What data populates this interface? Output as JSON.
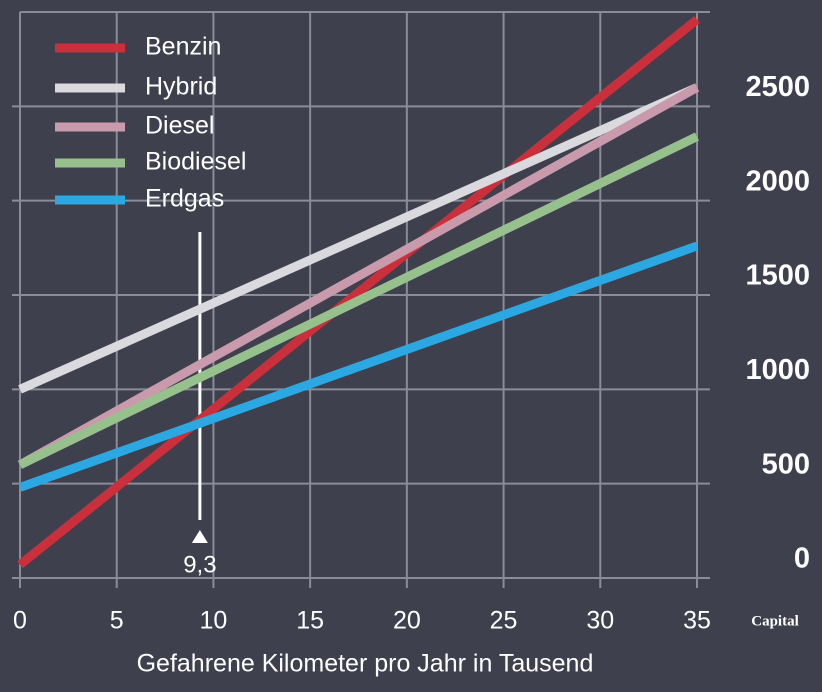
{
  "chart_data": {
    "type": "line",
    "x": [
      0,
      35
    ],
    "series": [
      {
        "name": "Benzin",
        "color": "#c9303b",
        "values": [
          70,
          2960
        ]
      },
      {
        "name": "Hybrid",
        "color": "#d9d9de",
        "values": [
          1000,
          2600
        ]
      },
      {
        "name": "Diesel",
        "color": "#c99aab",
        "values": [
          600,
          2600
        ]
      },
      {
        "name": "Biodiesel",
        "color": "#97c18c",
        "values": [
          600,
          2340
        ]
      },
      {
        "name": "Erdgas",
        "color": "#2ba7e2",
        "values": [
          480,
          1760
        ]
      }
    ],
    "xlabel": "Gefahrene Kilometer pro Jahr in Tausend",
    "xlim": [
      0,
      35
    ],
    "xticks": [
      0,
      5,
      10,
      15,
      20,
      25,
      30,
      35
    ],
    "ylim": [
      0,
      3000
    ],
    "yticks": [
      0,
      500,
      1000,
      1500,
      2000,
      2500
    ],
    "grid": true,
    "legend": "upper left",
    "annotation": {
      "value": 9.3,
      "label": "9,3"
    },
    "source": "Capital"
  }
}
